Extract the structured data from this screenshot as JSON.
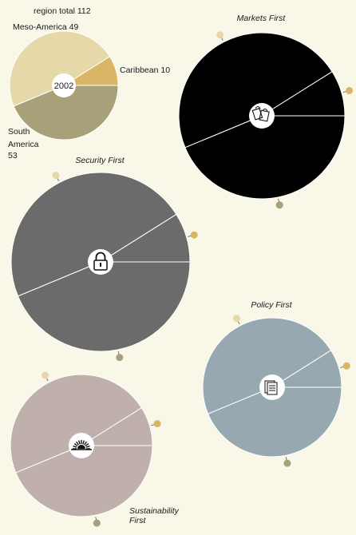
{
  "chart_data": [
    {
      "type": "pie",
      "title": "region total 112",
      "center_label": "2002",
      "categories": [
        "Caribbean 10",
        "South America 53",
        "Meso-America 49"
      ],
      "values": [
        10,
        53,
        49
      ],
      "colors": [
        "#d8b665",
        "#e6d8a9",
        "#a8a079"
      ]
    },
    {
      "type": "pie",
      "title": "Markets First",
      "icon": "shopping-bags-icon",
      "values": [
        10,
        53,
        49
      ],
      "colors": [
        "#000000",
        "#000000",
        "#000000"
      ],
      "marker_colors": [
        "#a8a079",
        "#d8b665",
        "#e6d8a9"
      ]
    },
    {
      "type": "pie",
      "title": "Security First",
      "icon": "padlock-icon",
      "values": [
        10,
        53,
        49
      ],
      "colors": [
        "#6b6b6b",
        "#6b6b6b",
        "#6b6b6b"
      ],
      "marker_colors": [
        "#a8a079",
        "#d8b665",
        "#e6d8a9"
      ]
    },
    {
      "type": "pie",
      "title": "Policy First",
      "icon": "documents-icon",
      "values": [
        10,
        53,
        49
      ],
      "colors": [
        "#98a8b0",
        "#98a8b0",
        "#98a8b0"
      ],
      "marker_colors": [
        "#a8a079",
        "#d8b665",
        "#e6d8a9"
      ]
    },
    {
      "type": "pie",
      "title": "Sustainability First",
      "icon": "sun-icon",
      "values": [
        10,
        53,
        49
      ],
      "colors": [
        "#bfb0ac",
        "#bfb0ac",
        "#bfb0ac"
      ],
      "marker_colors": [
        "#a8a079",
        "#d8b665",
        "#e6d8a9"
      ]
    }
  ]
}
